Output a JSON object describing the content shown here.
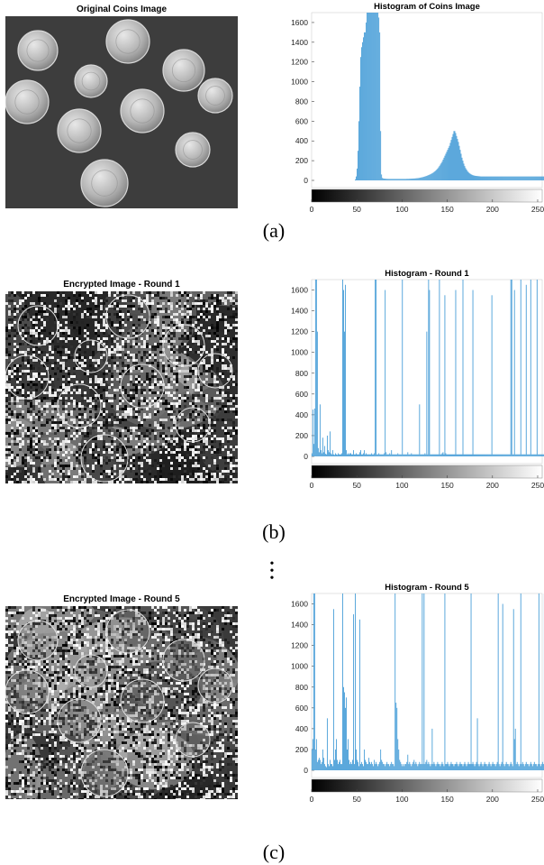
{
  "figure": {
    "captions": [
      "(a)",
      "(b)",
      "(c)"
    ],
    "ellipsis": [
      "•",
      "•",
      "•"
    ]
  },
  "images": [
    {
      "title": "Original Coins Image",
      "kind": "original"
    },
    {
      "title": "Encrypted Image - Round 1",
      "kind": "encrypted-1"
    },
    {
      "title": "Encrypted Image - Round 5",
      "kind": "encrypted-5"
    }
  ],
  "chart_data": [
    {
      "type": "bar",
      "title": "Histogram of Coins Image",
      "xlim": [
        0,
        255
      ],
      "ylim": [
        0,
        1700
      ],
      "xticks": [
        0,
        50,
        100,
        150,
        200,
        250
      ],
      "xtick_labels": [
        "0",
        "50",
        "100",
        "150",
        "200",
        "250"
      ],
      "yticks": [
        0,
        200,
        400,
        600,
        800,
        1000,
        1200,
        1400,
        1600
      ],
      "ytick_labels": [
        "0",
        "200",
        "400",
        "600",
        "800",
        "1000",
        "1200",
        "1400",
        "1600"
      ],
      "colorbar": "grayscale",
      "bar_color": "#4a9fd8",
      "values": [
        0,
        0,
        0,
        0,
        0,
        0,
        0,
        0,
        0,
        0,
        0,
        0,
        0,
        0,
        0,
        0,
        0,
        0,
        0,
        0,
        0,
        0,
        0,
        0,
        0,
        0,
        0,
        0,
        0,
        0,
        0,
        0,
        0,
        0,
        0,
        0,
        0,
        0,
        0,
        0,
        0,
        0,
        0,
        0,
        0,
        0,
        0,
        0,
        10,
        40,
        120,
        300,
        600,
        950,
        1250,
        1350,
        1400,
        1450,
        1500,
        1500,
        1600,
        1700,
        1700,
        1700,
        1700,
        1700,
        1700,
        1700,
        1700,
        1700,
        1700,
        1700,
        1700,
        1700,
        1650,
        1500,
        500,
        60,
        25,
        20,
        18,
        18,
        16,
        16,
        15,
        15,
        15,
        15,
        15,
        15,
        15,
        15,
        15,
        15,
        15,
        15,
        15,
        15,
        15,
        15,
        15,
        15,
        15,
        15,
        15,
        16,
        16,
        16,
        17,
        17,
        18,
        18,
        19,
        19,
        20,
        21,
        22,
        23,
        24,
        26,
        28,
        30,
        32,
        34,
        37,
        40,
        43,
        46,
        50,
        54,
        58,
        62,
        67,
        72,
        78,
        85,
        92,
        100,
        110,
        120,
        132,
        145,
        160,
        175,
        190,
        210,
        230,
        250,
        270,
        290,
        310,
        330,
        350,
        380,
        410,
        440,
        470,
        500,
        500,
        480,
        450,
        420,
        390,
        350,
        310,
        270,
        230,
        200,
        170,
        145,
        125,
        110,
        95,
        85,
        75,
        68,
        62,
        57,
        53,
        50,
        48,
        46,
        45,
        44,
        43,
        42,
        41,
        40,
        40,
        40,
        40,
        40,
        40,
        40,
        40,
        40,
        40,
        40,
        40,
        40,
        40,
        40,
        40,
        40,
        40,
        40,
        40,
        40,
        40,
        40,
        40,
        40,
        40,
        40,
        40,
        40,
        40,
        40,
        40,
        40,
        40,
        40,
        40,
        40,
        40,
        40,
        40,
        40,
        40,
        40,
        40,
        40,
        40,
        40,
        40,
        40,
        40,
        40,
        40,
        40,
        40,
        40,
        40,
        40,
        40,
        40,
        40,
        40,
        40,
        40,
        40,
        40,
        40,
        40,
        40,
        40,
        40,
        40,
        40,
        40,
        40,
        40,
        40,
        40,
        40,
        40,
        40,
        40,
        40,
        40,
        40,
        40
      ]
    },
    {
      "type": "bar",
      "title": "Histogram - Round 1",
      "xlim": [
        0,
        255
      ],
      "ylim": [
        0,
        1700
      ],
      "xticks": [
        0,
        50,
        100,
        150,
        200,
        250
      ],
      "xtick_labels": [
        "0",
        "50",
        "100",
        "150",
        "200",
        "250"
      ],
      "yticks": [
        0,
        200,
        400,
        600,
        800,
        1000,
        1200,
        1400,
        1600
      ],
      "ytick_labels": [
        "0",
        "200",
        "400",
        "600",
        "800",
        "1000",
        "1200",
        "1400",
        "1600"
      ],
      "colorbar": "grayscale",
      "bar_color": "#4a9fd8",
      "values": [
        30,
        450,
        120,
        460,
        1700,
        1700,
        1200,
        80,
        40,
        500,
        60,
        30,
        180,
        40,
        100,
        25,
        20,
        200,
        60,
        40,
        240,
        30,
        20,
        60,
        20,
        15,
        30,
        20,
        15,
        30,
        20,
        20,
        20,
        30,
        1700,
        1600,
        1200,
        1650,
        60,
        20,
        30,
        20,
        30,
        30,
        20,
        20,
        60,
        20,
        20,
        30,
        20,
        20,
        20,
        40,
        60,
        20,
        20,
        30,
        60,
        20,
        30,
        20,
        20,
        20,
        20,
        20,
        30,
        20,
        20,
        30,
        1700,
        1700,
        20,
        20,
        30,
        20,
        20,
        20,
        20,
        20,
        30,
        1600,
        40,
        20,
        20,
        20,
        30,
        20,
        60,
        20,
        20,
        20,
        20,
        20,
        20,
        30,
        20,
        20,
        20,
        20,
        1700,
        20,
        20,
        20,
        20,
        20,
        40,
        20,
        20,
        20,
        30,
        20,
        20,
        20,
        20,
        20,
        20,
        20,
        20,
        500,
        20,
        20,
        20,
        20,
        20,
        30,
        20,
        1200,
        20,
        1700,
        1600,
        20,
        20,
        20,
        20,
        20,
        20,
        20,
        20,
        20,
        20,
        1700,
        20,
        20,
        30,
        40,
        20,
        1550,
        30,
        20,
        20,
        20,
        20,
        20,
        20,
        20,
        20,
        20,
        20,
        1600,
        20,
        20,
        20,
        20,
        20,
        20,
        20,
        1700,
        20,
        20,
        20,
        20,
        20,
        20,
        20,
        20,
        20,
        20,
        1600,
        20,
        20,
        20,
        20,
        20,
        20,
        20,
        20,
        20,
        20,
        20,
        20,
        20,
        20,
        20,
        20,
        20,
        20,
        20,
        20,
        1550,
        20,
        20,
        20,
        20,
        20,
        20,
        20,
        20,
        20,
        20,
        20,
        20,
        20,
        20,
        20,
        20,
        20,
        20,
        20,
        20,
        1700,
        1700,
        20,
        20,
        1600,
        20,
        20,
        20,
        20,
        20,
        20,
        1700,
        20,
        20,
        20,
        20,
        20,
        1650,
        20,
        20,
        20,
        20,
        1700,
        20,
        20,
        20,
        20,
        20,
        20,
        1700,
        20,
        20,
        20,
        20,
        20,
        20,
        20,
        20,
        20,
        20,
        1700,
        20,
        20,
        20,
        30,
        20,
        20,
        20,
        1700,
        20,
        20,
        1650,
        20,
        20
      ]
    },
    {
      "type": "bar",
      "title": "Histogram - Round 5",
      "xlim": [
        0,
        255
      ],
      "ylim": [
        0,
        1700
      ],
      "xticks": [
        0,
        50,
        100,
        150,
        200,
        250
      ],
      "xtick_labels": [
        "0",
        "50",
        "100",
        "150",
        "200",
        "250"
      ],
      "yticks": [
        0,
        200,
        400,
        600,
        800,
        1000,
        1200,
        1400,
        1600
      ],
      "ytick_labels": [
        "0",
        "200",
        "400",
        "600",
        "800",
        "1000",
        "1200",
        "1400",
        "1600"
      ],
      "colorbar": "grayscale",
      "bar_color": "#4a9fd8",
      "values": [
        200,
        300,
        1700,
        1700,
        200,
        300,
        80,
        100,
        120,
        100,
        60,
        80,
        200,
        120,
        60,
        40,
        30,
        500,
        60,
        40,
        100,
        60,
        60,
        40,
        1550,
        100,
        200,
        300,
        100,
        60,
        80,
        100,
        60,
        60,
        1700,
        800,
        750,
        600,
        700,
        200,
        300,
        100,
        60,
        80,
        60,
        100,
        1500,
        60,
        1700,
        200,
        100,
        80,
        40,
        1450,
        60,
        80,
        60,
        40,
        200,
        100,
        80,
        60,
        60,
        120,
        80,
        60,
        80,
        60,
        40,
        100,
        60,
        80,
        60,
        40,
        60,
        80,
        200,
        100,
        80,
        60,
        60,
        40,
        60,
        80,
        60,
        60,
        40,
        60,
        80,
        60,
        60,
        40,
        1700,
        650,
        600,
        300,
        200,
        100,
        80,
        60,
        40,
        60,
        40,
        60,
        60,
        80,
        150,
        60,
        80,
        60,
        40,
        60,
        80,
        100,
        60,
        80,
        60,
        40,
        60,
        80,
        60,
        60,
        1700,
        60,
        1700,
        60,
        80,
        100,
        60,
        80,
        60,
        40,
        60,
        400,
        60,
        80,
        60,
        40,
        60,
        80,
        60,
        60,
        40,
        60,
        80,
        60,
        40,
        1700,
        60,
        60,
        80,
        60,
        40,
        60,
        80,
        60,
        60,
        40,
        60,
        60,
        80,
        60,
        40,
        60,
        80,
        60,
        60,
        40,
        60,
        80,
        60,
        40,
        60,
        80,
        60,
        60,
        1700,
        60,
        80,
        60,
        40,
        60,
        80,
        500,
        60,
        40,
        60,
        80,
        60,
        40,
        60,
        80,
        60,
        60,
        40,
        60,
        80,
        60,
        40,
        60,
        80,
        60,
        60,
        40,
        60,
        80,
        1700,
        60,
        40,
        60,
        80,
        1600,
        60,
        40,
        60,
        80,
        60,
        60,
        40,
        60,
        80,
        60,
        40,
        1550,
        300,
        400,
        60,
        80,
        60,
        40,
        60,
        1700,
        60,
        80,
        60,
        40,
        60,
        80,
        60,
        60,
        40,
        60,
        80,
        60,
        40,
        60,
        80,
        60,
        60,
        40,
        60,
        1700,
        60,
        40,
        60,
        80,
        60,
        1700,
        60,
        40,
        60
      ]
    }
  ]
}
